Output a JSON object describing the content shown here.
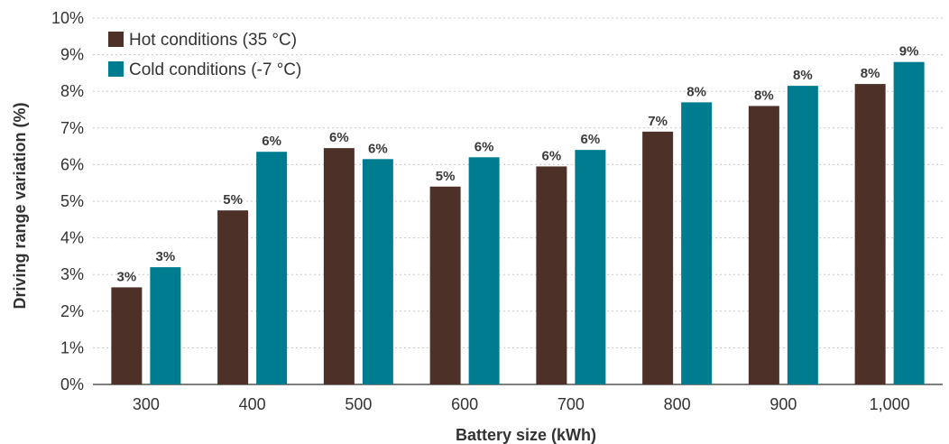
{
  "chart_data": {
    "type": "bar",
    "xlabel": "Battery size (kWh)",
    "ylabel": "Driving range variation (%)",
    "ylim": [
      0,
      10
    ],
    "y_ticks": [
      "0%",
      "1%",
      "2%",
      "3%",
      "4%",
      "5%",
      "6%",
      "7%",
      "8%",
      "9%",
      "10%"
    ],
    "grid": "horizontal dotted",
    "legend_position": "top-left",
    "categories": [
      "300",
      "400",
      "500",
      "600",
      "700",
      "800",
      "900",
      "1,000"
    ],
    "series": [
      {
        "name": "Hot conditions (35 °C)",
        "color": "#4d3128",
        "values": [
          2.65,
          4.75,
          6.45,
          5.4,
          5.95,
          6.9,
          7.6,
          8.2
        ],
        "labels": [
          "3%",
          "5%",
          "6%",
          "5%",
          "6%",
          "7%",
          "8%",
          "8%"
        ]
      },
      {
        "name": "Cold conditions (-7 °C)",
        "color": "#007c91",
        "values": [
          3.2,
          6.35,
          6.15,
          6.2,
          6.4,
          7.7,
          8.15,
          8.8
        ],
        "labels": [
          "3%",
          "6%",
          "6%",
          "6%",
          "6%",
          "8%",
          "8%",
          "9%"
        ]
      }
    ]
  }
}
